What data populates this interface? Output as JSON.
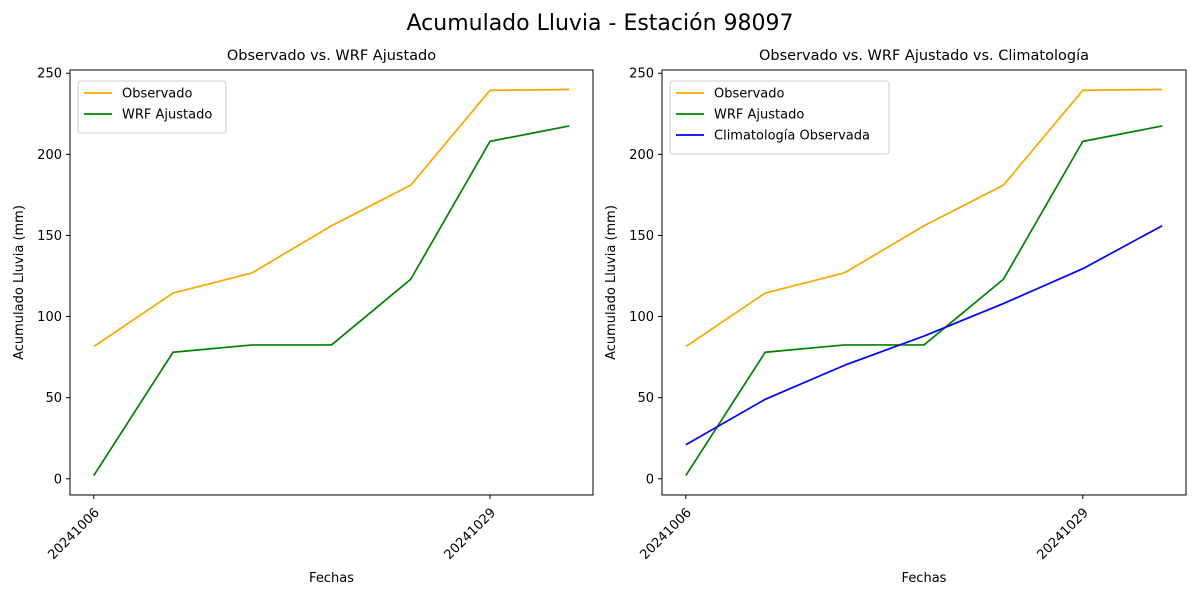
{
  "figure": {
    "title": "Acumulado Lluvia - Estación 98097"
  },
  "colors": {
    "observado": "#ffa500",
    "wrf": "#008000",
    "clima": "#0000ff",
    "axis": "#000000"
  },
  "chart_data": [
    {
      "type": "line",
      "title": "Observado vs. WRF Ajustado",
      "xlabel": "Fechas",
      "ylabel": "Acumulado Lluvia (mm)",
      "x": [
        0,
        1,
        2,
        3,
        4,
        5,
        6
      ],
      "xticks": [
        {
          "x": 0,
          "label": "20241006"
        },
        {
          "x": 5,
          "label": "20241029"
        }
      ],
      "yticks": [
        0,
        50,
        100,
        150,
        200,
        250
      ],
      "xlim": [
        -0.3,
        6.3
      ],
      "ylim": [
        -10,
        252
      ],
      "legend": "top-left",
      "grid": false,
      "series": [
        {
          "name": "Observado",
          "color": "#ffa500",
          "values": [
            81.5,
            114.5,
            127,
            156,
            181,
            239.5,
            240
          ]
        },
        {
          "name": "WRF Ajustado",
          "color": "#008000",
          "values": [
            2,
            78,
            82.5,
            82.5,
            123,
            208,
            217.5
          ]
        }
      ]
    },
    {
      "type": "line",
      "title": "Observado vs. WRF Ajustado vs. Climatología",
      "xlabel": "Fechas",
      "ylabel": "Acumulado Lluvia (mm)",
      "x": [
        0,
        1,
        2,
        3,
        4,
        5,
        6
      ],
      "xticks": [
        {
          "x": 0,
          "label": "20241006"
        },
        {
          "x": 5,
          "label": "20241029"
        }
      ],
      "yticks": [
        0,
        50,
        100,
        150,
        200,
        250
      ],
      "xlim": [
        -0.3,
        6.3
      ],
      "ylim": [
        -10,
        252
      ],
      "legend": "top-left",
      "grid": false,
      "series": [
        {
          "name": "Observado",
          "color": "#ffa500",
          "values": [
            81.5,
            114.5,
            127,
            156,
            181,
            239.5,
            240
          ]
        },
        {
          "name": "WRF Ajustado",
          "color": "#008000",
          "values": [
            2,
            78,
            82.5,
            82.5,
            123,
            208,
            217.5
          ]
        },
        {
          "name": "Climatología Observada",
          "color": "#0000ff",
          "values": [
            21,
            49,
            70,
            88,
            108,
            129.5,
            156
          ]
        }
      ]
    }
  ]
}
